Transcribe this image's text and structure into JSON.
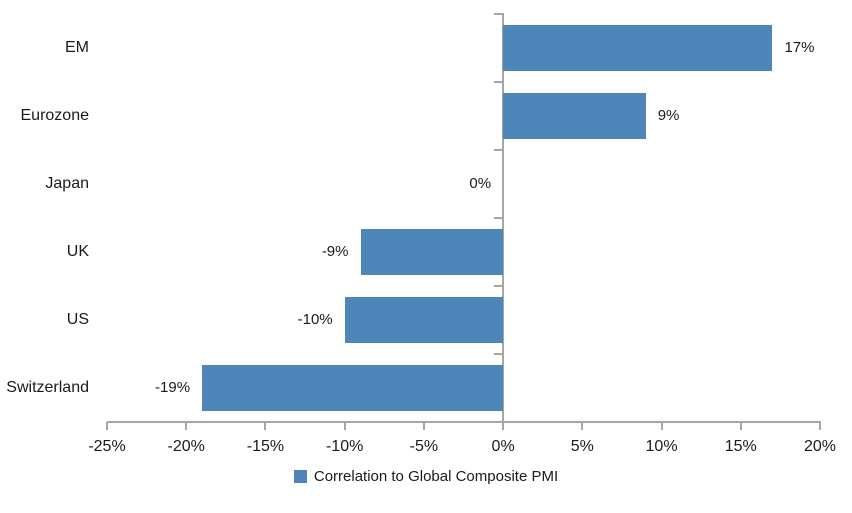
{
  "chart_data": {
    "type": "bar",
    "orientation": "horizontal",
    "title": "",
    "categories": [
      "EM",
      "Eurozone",
      "Japan",
      "UK",
      "US",
      "Switzerland"
    ],
    "values": [
      17,
      9,
      0,
      -9,
      -10,
      -19
    ],
    "data_labels": [
      "17%",
      "9%",
      "0%",
      "-9%",
      "-10%",
      "-19%"
    ],
    "x_ticks": [
      -25,
      -20,
      -15,
      -10,
      -5,
      0,
      5,
      10,
      15,
      20
    ],
    "x_tick_labels": [
      "-25%",
      "-20%",
      "-15%",
      "-10%",
      "-5%",
      "0%",
      "5%",
      "10%",
      "15%",
      "20%"
    ],
    "xlim": [
      -25,
      20
    ],
    "grid": false,
    "legend": "Correlation to Global Composite PMI",
    "legend_position": "bottom",
    "colors": {
      "bar": "#4E86BC",
      "axis": "#A6A6A6",
      "text": "#1A1A1A",
      "background": "#FFFFFF"
    }
  }
}
